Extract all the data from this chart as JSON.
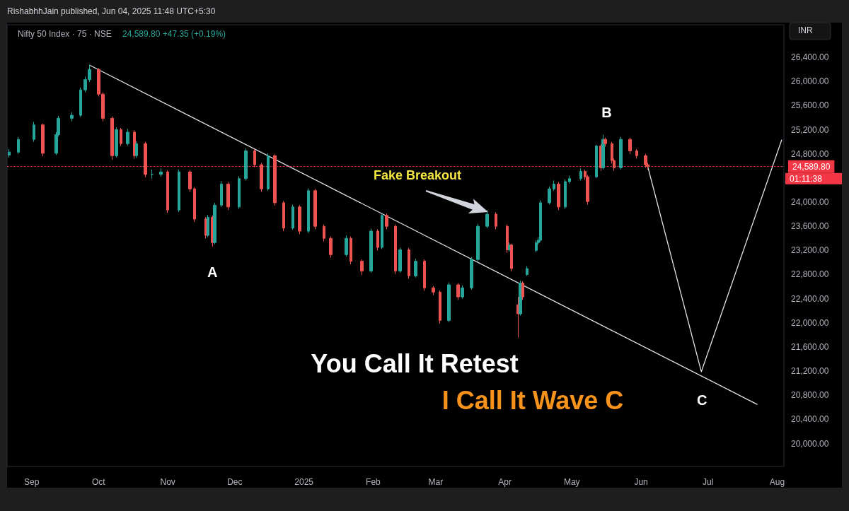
{
  "chart_data": {
    "type": "candlestick",
    "title": "Nifty 50 Index · 75 · NSE",
    "subtitle": "24,589.80 +47.35 (+0.19%)",
    "x": [
      "2024-08-22",
      "2024-08-26",
      "2024-09-02",
      "2024-09-06",
      "2024-09-12",
      "2024-09-13",
      "2024-09-19",
      "2024-09-23",
      "2024-09-25",
      "2024-09-27",
      "2024-10-01",
      "2024-10-03",
      "2024-10-07",
      "2024-10-09",
      "2024-10-11",
      "2024-10-14",
      "2024-10-17",
      "2024-10-18",
      "2024-10-22",
      "2024-10-25",
      "2024-10-29",
      "2024-11-01",
      "2024-11-06",
      "2024-11-11",
      "2024-11-13",
      "2024-11-18",
      "2024-11-19",
      "2024-11-21",
      "2024-11-22",
      "2024-11-25",
      "2024-11-28",
      "2024-12-03",
      "2024-12-06",
      "2024-12-10",
      "2024-12-13",
      "2024-12-16",
      "2024-12-19",
      "2024-12-23",
      "2024-12-27",
      "2024-12-30",
      "2025-01-03",
      "2025-01-06",
      "2025-01-10",
      "2025-01-13",
      "2025-01-20",
      "2025-01-22",
      "2025-01-27",
      "2025-01-31",
      "2025-02-03",
      "2025-02-05",
      "2025-02-07",
      "2025-02-11",
      "2025-02-13",
      "2025-02-17",
      "2025-02-20",
      "2025-02-24",
      "2025-02-28",
      "2025-03-03",
      "2025-03-07",
      "2025-03-11",
      "2025-03-13",
      "2025-03-17",
      "2025-03-20",
      "2025-03-24",
      "2025-03-28",
      "2025-04-02",
      "2025-04-03",
      "2025-04-04",
      "2025-04-07",
      "2025-04-08",
      "2025-04-09",
      "2025-04-11",
      "2025-04-15",
      "2025-04-16",
      "2025-04-17",
      "2025-04-21",
      "2025-04-23",
      "2025-04-25",
      "2025-04-28",
      "2025-04-30",
      "2025-05-05",
      "2025-05-07",
      "2025-05-08",
      "2025-05-12",
      "2025-05-14",
      "2025-05-15",
      "2025-05-16",
      "2025-05-19",
      "2025-05-20",
      "2025-05-23",
      "2025-05-27",
      "2025-05-30",
      "2025-06-03",
      "2025-06-04"
    ],
    "ohlc": [
      [
        24780,
        24880,
        24740,
        24830
      ],
      [
        24830,
        25080,
        24800,
        25040
      ],
      [
        25040,
        25330,
        25000,
        25280
      ],
      [
        25280,
        25300,
        24760,
        24810
      ],
      [
        24810,
        25160,
        24780,
        25120
      ],
      [
        25120,
        25430,
        25090,
        25390
      ],
      [
        25390,
        25490,
        25340,
        25440
      ],
      [
        25440,
        25900,
        25410,
        25860
      ],
      [
        25860,
        26080,
        25820,
        26030
      ],
      [
        26030,
        26277,
        25990,
        26200
      ],
      [
        26200,
        26220,
        25750,
        25790
      ],
      [
        25790,
        25820,
        25340,
        25390
      ],
      [
        25390,
        25420,
        24700,
        24770
      ],
      [
        24770,
        25240,
        24740,
        25200
      ],
      [
        25200,
        25230,
        24930,
        24970
      ],
      [
        24970,
        25210,
        24940,
        25160
      ],
      [
        25160,
        25190,
        24720,
        24770
      ],
      [
        24770,
        25010,
        24730,
        24970
      ],
      [
        24970,
        25000,
        24410,
        24460
      ],
      [
        24460,
        24540,
        24390,
        24460
      ],
      [
        24460,
        24560,
        24420,
        24500
      ],
      [
        24500,
        24530,
        23820,
        23870
      ],
      [
        23870,
        24540,
        23840,
        24500
      ],
      [
        24500,
        24530,
        24170,
        24220
      ],
      [
        24220,
        24250,
        23670,
        23720
      ],
      [
        23720,
        23750,
        23400,
        23450
      ],
      [
        23450,
        23790,
        23420,
        23750
      ],
      [
        23750,
        23780,
        23263,
        23330
      ],
      [
        23330,
        23990,
        23300,
        23950
      ],
      [
        23950,
        24350,
        23920,
        24300
      ],
      [
        24300,
        24330,
        23870,
        23920
      ],
      [
        23920,
        24430,
        23890,
        24390
      ],
      [
        24390,
        24890,
        24360,
        24850
      ],
      [
        24850,
        24880,
        24580,
        24620
      ],
      [
        24620,
        24650,
        24170,
        24220
      ],
      [
        24220,
        24810,
        24190,
        24770
      ],
      [
        24770,
        24790,
        23940,
        23990
      ],
      [
        23990,
        24020,
        23520,
        23570
      ],
      [
        23570,
        23960,
        23540,
        23920
      ],
      [
        23920,
        23950,
        23470,
        23520
      ],
      [
        23520,
        24230,
        23490,
        24190
      ],
      [
        24190,
        24220,
        23550,
        23600
      ],
      [
        23600,
        23630,
        23350,
        23400
      ],
      [
        23400,
        23430,
        23080,
        23130
      ],
      [
        23130,
        23450,
        23100,
        23400
      ],
      [
        23400,
        23430,
        22970,
        23020
      ],
      [
        23020,
        23050,
        22790,
        22860
      ],
      [
        22860,
        23560,
        22830,
        23520
      ],
      [
        23520,
        23550,
        23200,
        23250
      ],
      [
        23250,
        23810,
        23220,
        23780
      ],
      [
        23780,
        23810,
        23550,
        23600
      ],
      [
        23600,
        23630,
        22810,
        22860
      ],
      [
        22860,
        23250,
        22830,
        23210
      ],
      [
        23210,
        23240,
        22730,
        22780
      ],
      [
        22780,
        23060,
        22750,
        23020
      ],
      [
        23020,
        23050,
        22530,
        22580
      ],
      [
        22580,
        22610,
        22460,
        22510
      ],
      [
        22510,
        22540,
        21990,
        22040
      ],
      [
        22040,
        22670,
        22010,
        22630
      ],
      [
        22630,
        22660,
        22380,
        22430
      ],
      [
        22430,
        22620,
        22400,
        22580
      ],
      [
        22580,
        23090,
        22550,
        23050
      ],
      [
        23050,
        23640,
        23020,
        23600
      ],
      [
        23600,
        23870,
        23570,
        23800
      ],
      [
        23800,
        23830,
        23550,
        23600
      ],
      [
        23600,
        23630,
        23160,
        23210
      ],
      [
        23210,
        23330,
        23180,
        23290
      ],
      [
        23290,
        23310,
        22850,
        22900
      ],
      [
        22300,
        22430,
        21760,
        22150
      ],
      [
        22150,
        22700,
        22120,
        22660
      ],
      [
        22660,
        22690,
        22380,
        22430
      ],
      [
        22800,
        22940,
        22780,
        22900
      ],
      [
        23200,
        23370,
        23170,
        23330
      ],
      [
        23330,
        23420,
        23300,
        23370
      ],
      [
        23370,
        24030,
        23340,
        23990
      ],
      [
        23990,
        24260,
        23960,
        24220
      ],
      [
        24220,
        24360,
        24190,
        24300
      ],
      [
        24300,
        24330,
        23870,
        23920
      ],
      [
        23920,
        24380,
        23890,
        24340
      ],
      [
        24340,
        24440,
        24310,
        24390
      ],
      [
        24390,
        24560,
        24360,
        24510
      ],
      [
        24510,
        24540,
        24370,
        24420
      ],
      [
        24420,
        24450,
        23960,
        24010
      ],
      [
        24420,
        24950,
        24400,
        24930
      ],
      [
        24930,
        24960,
        24520,
        24570
      ],
      [
        24570,
        25116,
        24540,
        25040
      ],
      [
        25040,
        25070,
        24920,
        24970
      ],
      [
        24970,
        25000,
        24640,
        24690
      ],
      [
        24690,
        24720,
        24520,
        24570
      ],
      [
        24570,
        25080,
        24540,
        25040
      ],
      [
        25040,
        25070,
        24800,
        24850
      ],
      [
        24850,
        24880,
        24720,
        24770
      ],
      [
        24770,
        24800,
        24570,
        24620
      ],
      [
        24620,
        24650,
        24540,
        24590
      ]
    ],
    "series": [
      {
        "type": "line",
        "color": "#e0e3eb",
        "x": [
          "2024-09-27",
          "2025-07-23"
        ],
        "values": [
          26270,
          20650
        ]
      },
      {
        "type": "line",
        "color": "#e0e3eb",
        "x": [
          "2025-06-04",
          "2025-06-28",
          "2025-08-03"
        ],
        "values": [
          24590,
          21190,
          25030
        ]
      }
    ],
    "xlim": [
      "2024-08-21",
      "2025-08-04"
    ],
    "xticks": [
      {
        "value": "2024-09-01",
        "label": "Sep"
      },
      {
        "value": "2024-10-01",
        "label": "Oct"
      },
      {
        "value": "2024-11-01",
        "label": "Nov"
      },
      {
        "value": "2024-12-01",
        "label": "Dec"
      },
      {
        "value": "2025-01-01",
        "label": "2025"
      },
      {
        "value": "2025-02-01",
        "label": "Feb"
      },
      {
        "value": "2025-03-01",
        "label": "Mar"
      },
      {
        "value": "2025-04-01",
        "label": "Apr"
      },
      {
        "value": "2025-05-01",
        "label": "May"
      },
      {
        "value": "2025-06-01",
        "label": "Jun"
      },
      {
        "value": "2025-07-01",
        "label": "Jul"
      },
      {
        "value": "2025-08-01",
        "label": "Aug"
      }
    ],
    "ylim": [
      19620,
      26940
    ],
    "yticks": [
      {
        "value": 20000,
        "label": "20,000.00"
      },
      {
        "value": 20400,
        "label": "20,400.00"
      },
      {
        "value": 20800,
        "label": "20,800.00"
      },
      {
        "value": 21200,
        "label": "21,200.00"
      },
      {
        "value": 21600,
        "label": "21,600.00"
      },
      {
        "value": 22000,
        "label": "22,000.00"
      },
      {
        "value": 22400,
        "label": "22,400.00"
      },
      {
        "value": 22800,
        "label": "22,800.00"
      },
      {
        "value": 23200,
        "label": "23,200.00"
      },
      {
        "value": 23600,
        "label": "23,600.00"
      },
      {
        "value": 24000,
        "label": "24,000.00"
      },
      {
        "value": 24800,
        "label": "24,800.00"
      },
      {
        "value": 25200,
        "label": "25,200.00"
      },
      {
        "value": 25600,
        "label": "25,600.00"
      },
      {
        "value": 26000,
        "label": "26,000.00"
      },
      {
        "value": 26400,
        "label": "26,400.00"
      }
    ],
    "ref_lines": [
      {
        "axis": "y",
        "value": 24589.8,
        "label": "24,589.80",
        "color": "#f23645",
        "line_style": "dotted"
      }
    ],
    "annotations": [
      "RishabhhJain published, Jun 04, 2025 11:48 UTC+5:30",
      "INR",
      {
        "text": "A",
        "x": "2024-11-21",
        "y": 23263
      },
      "Fake Breakout",
      {
        "text": "B",
        "x": "2025-05-15",
        "y": 25116
      },
      {
        "text": "C",
        "x": "2025-06-28",
        "y": 21190
      },
      "You Call It Retest",
      "I Call It Wave C",
      "01:11:38"
    ]
  }
}
